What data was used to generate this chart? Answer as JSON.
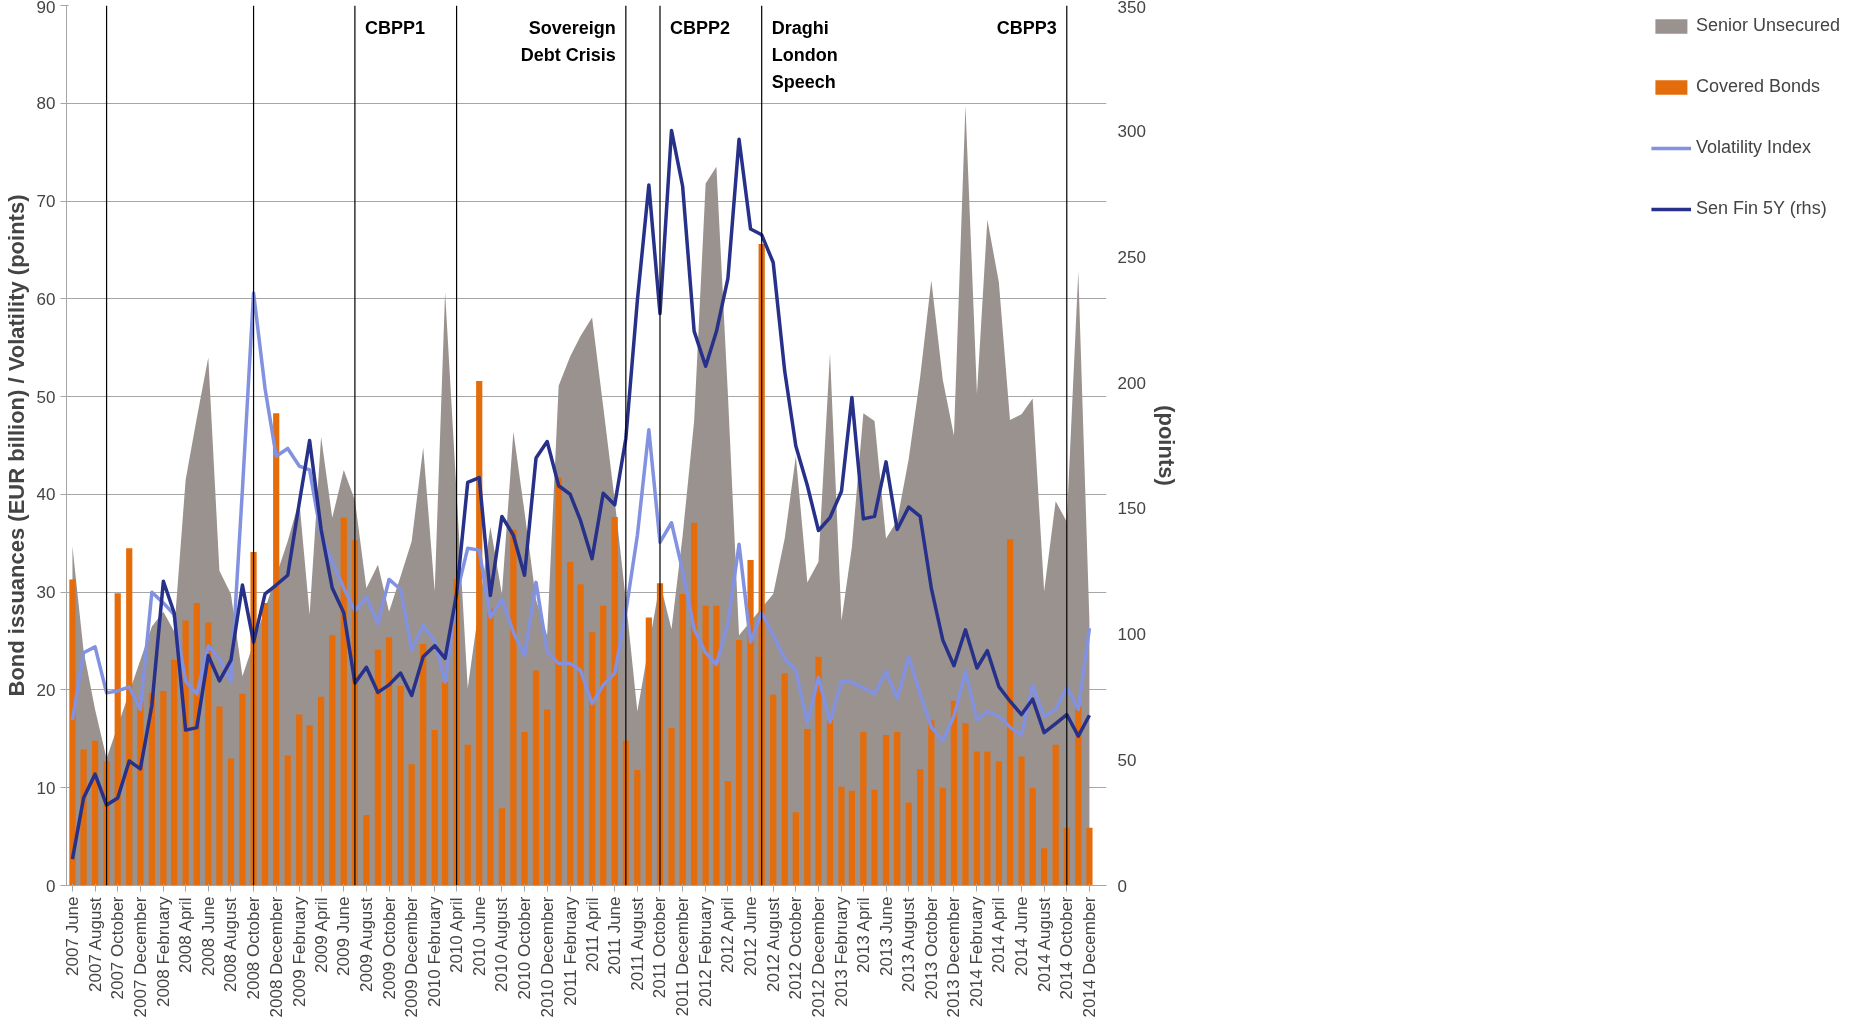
{
  "chart_data": {
    "type": "bar",
    "ylabel": "Bond issuances (EUR billion) / Volatility (points)",
    "y2label": "(points)",
    "x": [
      "2007-06",
      "2007-07",
      "2007-08",
      "2007-09",
      "2007-10",
      "2007-11",
      "2007-12",
      "2008-01",
      "2008-02",
      "2008-03",
      "2008-04",
      "2008-05",
      "2008-06",
      "2008-07",
      "2008-08",
      "2008-09",
      "2008-10",
      "2008-11",
      "2008-12",
      "2009-01",
      "2009-02",
      "2009-03",
      "2009-04",
      "2009-05",
      "2009-06",
      "2009-07",
      "2009-08",
      "2009-09",
      "2009-10",
      "2009-11",
      "2009-12",
      "2010-01",
      "2010-02",
      "2010-03",
      "2010-04",
      "2010-05",
      "2010-06",
      "2010-07",
      "2010-08",
      "2010-09",
      "2010-10",
      "2010-11",
      "2010-12",
      "2011-01",
      "2011-02",
      "2011-03",
      "2011-04",
      "2011-05",
      "2011-06",
      "2011-07",
      "2011-08",
      "2011-09",
      "2011-10",
      "2011-11",
      "2011-12",
      "2012-01",
      "2012-02",
      "2012-03",
      "2012-04",
      "2012-05",
      "2012-06",
      "2012-07",
      "2012-08",
      "2012-09",
      "2012-10",
      "2012-11",
      "2012-12",
      "2013-01",
      "2013-02",
      "2013-03",
      "2013-04",
      "2013-05",
      "2013-06",
      "2013-07",
      "2013-08",
      "2013-09",
      "2013-10",
      "2013-11",
      "2013-12",
      "2014-01",
      "2014-02",
      "2014-03",
      "2014-04",
      "2014-05",
      "2014-06",
      "2014-07",
      "2014-08",
      "2014-09",
      "2014-10",
      "2014-11",
      "2014-12"
    ],
    "series": [
      {
        "name": "Senior Unsecured",
        "type": "area",
        "color": "#9a928e",
        "values": [
          34.7,
          24,
          18,
          13,
          null,
          null,
          null,
          26.5,
          28,
          26,
          41.5,
          47.8,
          54,
          32.2,
          29.8,
          21.4,
          null,
          null,
          null,
          35.2,
          39.4,
          27.7,
          45.9,
          37.6,
          42.5,
          39.4,
          30.4,
          32.8,
          28,
          31.6,
          35.2,
          44.8,
          30.1,
          60.7,
          null,
          20.2,
          null,
          36.7,
          29.8,
          46.4,
          38.2,
          29.2,
          25.6,
          51.1,
          54.1,
          56.2,
          58.1,
          49,
          39.4,
          29.2,
          17.8,
          null,
          31,
          26.2,
          35.8,
          47.5,
          71.8,
          73.5,
          50.2,
          25.6,
          null,
          null,
          29.8,
          35.5,
          43.9,
          31,
          33.1,
          54.4,
          27.1,
          34.6,
          48.3,
          47.5,
          35.5,
          37.3,
          43.6,
          52,
          61.9,
          51.7,
          46,
          79.8,
          50.3,
          68.1,
          61.7,
          47.6,
          48.2,
          49.8,
          30.1,
          39.3,
          37.2,
          62.8,
          27
        ]
      },
      {
        "name": "Covered Bonds",
        "color": "#e46c0a",
        "values": [
          31.3,
          13.9,
          14.8,
          12.7,
          29.9,
          34.5,
          18.9,
          19.7,
          19.9,
          23.1,
          27.1,
          28.9,
          26.9,
          18.3,
          13,
          19.6,
          34.1,
          28.9,
          48.3,
          13.3,
          17.5,
          16.4,
          19.3,
          25.6,
          37.6,
          35.3,
          7.2,
          24.1,
          25.4,
          20.4,
          12.4,
          24.7,
          15.9,
          20.8,
          31.4,
          14.4,
          51.6,
          28.3,
          7.9,
          36.4,
          15.7,
          22,
          18,
          41.7,
          33.1,
          30.8,
          25.9,
          28.6,
          37.7,
          14.8,
          11.8,
          27.4,
          30.9,
          16.1,
          29.8,
          37.1,
          28.6,
          28.6,
          10.7,
          25.1,
          33.3,
          65.6,
          19.5,
          21.7,
          7.5,
          16,
          23.4,
          16.9,
          10.1,
          9.7,
          15.7,
          9.8,
          15.4,
          15.7,
          8.5,
          11.9,
          16.9,
          10,
          18.9,
          16.6,
          13.7,
          13.7,
          12.7,
          35.4,
          13.2,
          10,
          3.8,
          14.4,
          5.9,
          18.3,
          5.9
        ]
      },
      {
        "name": "Volatility Index",
        "type": "line",
        "color": "#8291e0",
        "values": [
          16.9,
          23.8,
          24.4,
          19.7,
          19.9,
          20.3,
          18,
          30,
          28.9,
          27.7,
          20.9,
          19.6,
          24.5,
          23.2,
          20.9,
          40.5,
          60.6,
          50.8,
          43.9,
          44.7,
          42.9,
          42.5,
          35.8,
          33.1,
          30.4,
          28.1,
          29.5,
          26.8,
          31.3,
          30.3,
          24.1,
          26.6,
          25,
          20.8,
          29.8,
          34.5,
          34.3,
          27.4,
          29.3,
          25.9,
          23.5,
          31,
          23.9,
          22.7,
          22.7,
          22,
          18.6,
          20.5,
          21.7,
          28,
          35.8,
          46.6,
          35.1,
          37.1,
          32.2,
          26.2,
          23.8,
          22.6,
          26.8,
          34.9,
          24.9,
          27.9,
          25.6,
          23.2,
          22,
          16.6,
          21.3,
          16.7,
          20.9,
          20.8,
          20.2,
          19.6,
          21.9,
          19.1,
          23.4,
          19.6,
          16.2,
          14.8,
          17.3,
          21.9,
          16.9,
          17.8,
          17.3,
          16.2,
          15.4,
          20.5,
          17.3,
          18,
          20.3,
          18,
          26.3
        ]
      },
      {
        "name": "Sen Fin 5Y (rhs)",
        "type": "line",
        "axis": "y2",
        "color": "#27318a",
        "values": [
          10.5,
          34.8,
          44.3,
          32,
          34.8,
          49.5,
          46.4,
          71.6,
          121,
          108.5,
          61.8,
          62.8,
          91.5,
          81.4,
          89.6,
          119.5,
          96.8,
          116,
          119.5,
          123.4,
          152,
          177,
          141.6,
          118.3,
          108.5,
          80.5,
          86.8,
          76.8,
          79.8,
          84.5,
          75.6,
          91,
          95.4,
          90.3,
          116,
          160.3,
          162.2,
          115.3,
          146.8,
          139.3,
          123.4,
          170,
          176.6,
          159,
          155.6,
          145.1,
          130,
          156,
          151.4,
          177.8,
          232.6,
          278.6,
          227.5,
          300.3,
          278.1,
          220.5,
          206.5,
          220.3,
          241.5,
          296.8,
          261.1,
          258.8,
          247.8,
          204.6,
          174.8,
          159.1,
          141.2,
          146.3,
          156.8,
          194.1,
          145.8,
          146.8,
          168.5,
          141.6,
          150.5,
          146.8,
          118.3,
          97.6,
          87.4,
          101.7,
          86.5,
          93.4,
          79.1,
          73.3,
          68,
          74.1,
          60.8,
          64.4,
          68,
          59.4,
          67.7
        ]
      }
    ],
    "xlim": [
      "2007-05-16",
      "2015-01-16"
    ],
    "xticks": [
      {
        "value": "2007-06",
        "label": "2007 June"
      },
      {
        "value": "2007-08",
        "label": "2007 August"
      },
      {
        "value": "2007-10",
        "label": "2007 October"
      },
      {
        "value": "2007-12",
        "label": "2007 December"
      },
      {
        "value": "2008-02",
        "label": "2008 February"
      },
      {
        "value": "2008-04",
        "label": "2008 April"
      },
      {
        "value": "2008-06",
        "label": "2008 June"
      },
      {
        "value": "2008-08",
        "label": "2008 August"
      },
      {
        "value": "2008-10",
        "label": "2008 October"
      },
      {
        "value": "2008-12",
        "label": "2008 December"
      },
      {
        "value": "2009-02",
        "label": "2009 February"
      },
      {
        "value": "2009-04",
        "label": "2009 April"
      },
      {
        "value": "2009-06",
        "label": "2009 June"
      },
      {
        "value": "2009-08",
        "label": "2009 August"
      },
      {
        "value": "2009-10",
        "label": "2009 October"
      },
      {
        "value": "2009-12",
        "label": "2009 December"
      },
      {
        "value": "2010-02",
        "label": "2010 February"
      },
      {
        "value": "2010-04",
        "label": "2010 April"
      },
      {
        "value": "2010-06",
        "label": "2010 June"
      },
      {
        "value": "2010-08",
        "label": "2010 August"
      },
      {
        "value": "2010-10",
        "label": "2010 October"
      },
      {
        "value": "2010-12",
        "label": "2010 December"
      },
      {
        "value": "2011-02",
        "label": "2011 February"
      },
      {
        "value": "2011-04",
        "label": "2011 April"
      },
      {
        "value": "2011-06",
        "label": "2011 June"
      },
      {
        "value": "2011-08",
        "label": "2011 August"
      },
      {
        "value": "2011-10",
        "label": "2011 October"
      },
      {
        "value": "2011-12",
        "label": "2011 December"
      },
      {
        "value": "2012-02",
        "label": "2012 February"
      },
      {
        "value": "2012-04",
        "label": "2012 April"
      },
      {
        "value": "2012-06",
        "label": "2012 June"
      },
      {
        "value": "2012-08",
        "label": "2012 August"
      },
      {
        "value": "2012-10",
        "label": "2012 October"
      },
      {
        "value": "2012-12",
        "label": "2012 December"
      },
      {
        "value": "2013-02",
        "label": "2013 February"
      },
      {
        "value": "2013-04",
        "label": "2013 April"
      },
      {
        "value": "2013-06",
        "label": "2013 June"
      },
      {
        "value": "2013-08",
        "label": "2013 August"
      },
      {
        "value": "2013-10",
        "label": "2013 October"
      },
      {
        "value": "2013-12",
        "label": "2013 December"
      },
      {
        "value": "2014-02",
        "label": "2014 February"
      },
      {
        "value": "2014-04",
        "label": "2014 April"
      },
      {
        "value": "2014-06",
        "label": "2014 June"
      },
      {
        "value": "2014-08",
        "label": "2014 August"
      },
      {
        "value": "2014-10",
        "label": "2014 October"
      },
      {
        "value": "2014-12",
        "label": "2014 December"
      }
    ],
    "ylim": [
      0,
      90
    ],
    "yticks": [
      0,
      10,
      20,
      30,
      40,
      50,
      60,
      70,
      80,
      90
    ],
    "y2lim": [
      0,
      350
    ],
    "y2ticks": [
      0,
      50,
      100,
      150,
      200,
      250,
      300,
      350
    ],
    "ref_lines": [
      {
        "axis": "x",
        "value": "2007-09",
        "color": "#000000"
      },
      {
        "axis": "x",
        "value": "2008-10",
        "color": "#000000"
      },
      {
        "axis": "x",
        "value": "2009-07",
        "color": "#000000",
        "label": "CBPP1"
      },
      {
        "axis": "x",
        "value": "2010-04",
        "color": "#000000"
      },
      {
        "axis": "x",
        "value": "2011-07",
        "color": "#000000",
        "label": "Sovereign\nDebt Crisis"
      },
      {
        "axis": "x",
        "value": "2011-10",
        "color": "#000000",
        "label": "CBPP2"
      },
      {
        "axis": "x",
        "value": "2012-07",
        "color": "#000000",
        "label": "Draghi\nLondon\nSpeech"
      },
      {
        "axis": "x",
        "value": "2014-10",
        "color": "#000000",
        "label": "CBPP3"
      }
    ],
    "grid": "y",
    "legend": "right"
  }
}
